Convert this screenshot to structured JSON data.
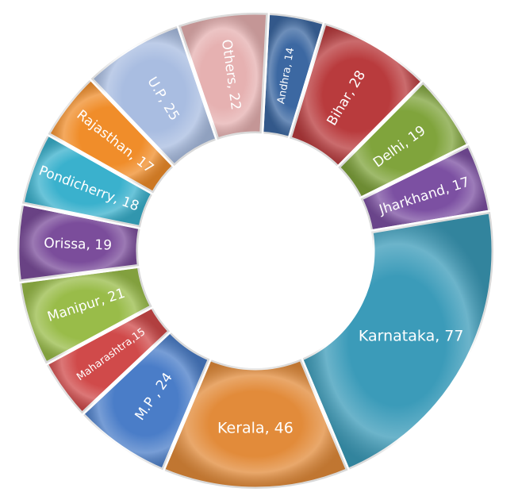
{
  "chart_data": {
    "type": "donut",
    "values": [
      14,
      28,
      19,
      17,
      77,
      46,
      24,
      15,
      21,
      19,
      18,
      17,
      25,
      22
    ],
    "value_labels": [
      "Andhra, 14",
      "Bihar, 28",
      "Delhi, 19",
      "Jharkhand, 17",
      "Karnataka, 77",
      "Kerala, 46",
      "M.P , 24",
      "Maharashtra,15",
      "Manipur, 21",
      "Orissa, 19",
      "Pondicherry, 18",
      "Rajasthan, 17",
      "U.P, 25",
      "Others, 22"
    ],
    "colors": [
      "#3c68a2",
      "#b93b3d",
      "#80a43c",
      "#7c50a2",
      "#3b9bb9",
      "#e28b3a",
      "#4a7dc8",
      "#d04a4a",
      "#99bc49",
      "#7b4d9b",
      "#3ab1cd",
      "#f08d2a",
      "#a9bde1",
      "#e6b1b1"
    ]
  }
}
